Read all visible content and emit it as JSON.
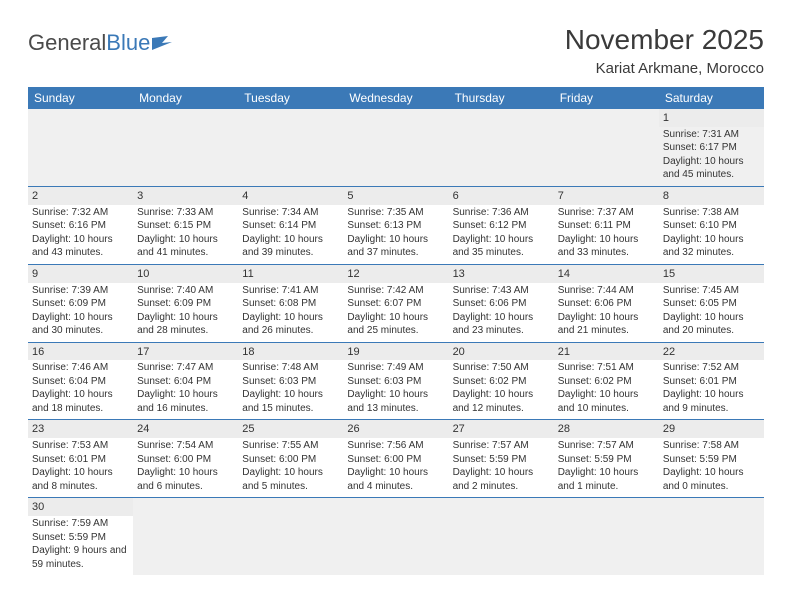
{
  "logo": {
    "part1": "General",
    "part2": "Blue"
  },
  "title": "November 2025",
  "location": "Kariat Arkmane, Morocco",
  "colors": {
    "header_bg": "#3b79b7",
    "header_text": "#ffffff",
    "daynum_bg": "#ececec",
    "border": "#3b79b7"
  },
  "weekdays": [
    "Sunday",
    "Monday",
    "Tuesday",
    "Wednesday",
    "Thursday",
    "Friday",
    "Saturday"
  ],
  "days": [
    {
      "n": "1",
      "sunrise": "7:31 AM",
      "sunset": "6:17 PM",
      "daylight": "10 hours and 45 minutes."
    },
    {
      "n": "2",
      "sunrise": "7:32 AM",
      "sunset": "6:16 PM",
      "daylight": "10 hours and 43 minutes."
    },
    {
      "n": "3",
      "sunrise": "7:33 AM",
      "sunset": "6:15 PM",
      "daylight": "10 hours and 41 minutes."
    },
    {
      "n": "4",
      "sunrise": "7:34 AM",
      "sunset": "6:14 PM",
      "daylight": "10 hours and 39 minutes."
    },
    {
      "n": "5",
      "sunrise": "7:35 AM",
      "sunset": "6:13 PM",
      "daylight": "10 hours and 37 minutes."
    },
    {
      "n": "6",
      "sunrise": "7:36 AM",
      "sunset": "6:12 PM",
      "daylight": "10 hours and 35 minutes."
    },
    {
      "n": "7",
      "sunrise": "7:37 AM",
      "sunset": "6:11 PM",
      "daylight": "10 hours and 33 minutes."
    },
    {
      "n": "8",
      "sunrise": "7:38 AM",
      "sunset": "6:10 PM",
      "daylight": "10 hours and 32 minutes."
    },
    {
      "n": "9",
      "sunrise": "7:39 AM",
      "sunset": "6:09 PM",
      "daylight": "10 hours and 30 minutes."
    },
    {
      "n": "10",
      "sunrise": "7:40 AM",
      "sunset": "6:09 PM",
      "daylight": "10 hours and 28 minutes."
    },
    {
      "n": "11",
      "sunrise": "7:41 AM",
      "sunset": "6:08 PM",
      "daylight": "10 hours and 26 minutes."
    },
    {
      "n": "12",
      "sunrise": "7:42 AM",
      "sunset": "6:07 PM",
      "daylight": "10 hours and 25 minutes."
    },
    {
      "n": "13",
      "sunrise": "7:43 AM",
      "sunset": "6:06 PM",
      "daylight": "10 hours and 23 minutes."
    },
    {
      "n": "14",
      "sunrise": "7:44 AM",
      "sunset": "6:06 PM",
      "daylight": "10 hours and 21 minutes."
    },
    {
      "n": "15",
      "sunrise": "7:45 AM",
      "sunset": "6:05 PM",
      "daylight": "10 hours and 20 minutes."
    },
    {
      "n": "16",
      "sunrise": "7:46 AM",
      "sunset": "6:04 PM",
      "daylight": "10 hours and 18 minutes."
    },
    {
      "n": "17",
      "sunrise": "7:47 AM",
      "sunset": "6:04 PM",
      "daylight": "10 hours and 16 minutes."
    },
    {
      "n": "18",
      "sunrise": "7:48 AM",
      "sunset": "6:03 PM",
      "daylight": "10 hours and 15 minutes."
    },
    {
      "n": "19",
      "sunrise": "7:49 AM",
      "sunset": "6:03 PM",
      "daylight": "10 hours and 13 minutes."
    },
    {
      "n": "20",
      "sunrise": "7:50 AM",
      "sunset": "6:02 PM",
      "daylight": "10 hours and 12 minutes."
    },
    {
      "n": "21",
      "sunrise": "7:51 AM",
      "sunset": "6:02 PM",
      "daylight": "10 hours and 10 minutes."
    },
    {
      "n": "22",
      "sunrise": "7:52 AM",
      "sunset": "6:01 PM",
      "daylight": "10 hours and 9 minutes."
    },
    {
      "n": "23",
      "sunrise": "7:53 AM",
      "sunset": "6:01 PM",
      "daylight": "10 hours and 8 minutes."
    },
    {
      "n": "24",
      "sunrise": "7:54 AM",
      "sunset": "6:00 PM",
      "daylight": "10 hours and 6 minutes."
    },
    {
      "n": "25",
      "sunrise": "7:55 AM",
      "sunset": "6:00 PM",
      "daylight": "10 hours and 5 minutes."
    },
    {
      "n": "26",
      "sunrise": "7:56 AM",
      "sunset": "6:00 PM",
      "daylight": "10 hours and 4 minutes."
    },
    {
      "n": "27",
      "sunrise": "7:57 AM",
      "sunset": "5:59 PM",
      "daylight": "10 hours and 2 minutes."
    },
    {
      "n": "28",
      "sunrise": "7:57 AM",
      "sunset": "5:59 PM",
      "daylight": "10 hours and 1 minute."
    },
    {
      "n": "29",
      "sunrise": "7:58 AM",
      "sunset": "5:59 PM",
      "daylight": "10 hours and 0 minutes."
    },
    {
      "n": "30",
      "sunrise": "7:59 AM",
      "sunset": "5:59 PM",
      "daylight": "9 hours and 59 minutes."
    }
  ],
  "labels": {
    "sunrise": "Sunrise: ",
    "sunset": "Sunset: ",
    "daylight": "Daylight: "
  },
  "first_day_column": 6
}
